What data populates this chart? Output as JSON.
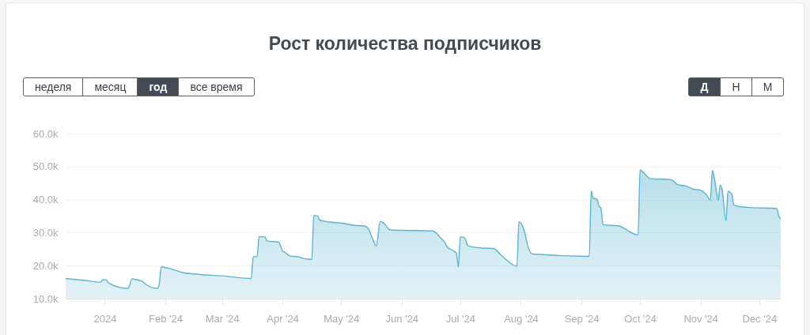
{
  "chart_data": {
    "type": "area",
    "title": "Рост количества подписчиков",
    "annotations": [
      "неделя",
      "месяц",
      "год",
      "все время",
      "Д",
      "Н",
      "М"
    ],
    "x": [
      "2023-12-12",
      "2023-12-22",
      "2023-12-30",
      "2023-12-31",
      "2024-01-01",
      "2024-01-02",
      "2024-01-03",
      "2024-01-13",
      "2024-01-15",
      "2024-01-16",
      "2024-01-20",
      "2024-01-22",
      "2024-01-28",
      "2024-01-29",
      "2024-01-30",
      "2024-02-01",
      "2024-02-02",
      "2024-02-10",
      "2024-02-17",
      "2024-03-01",
      "2024-03-16",
      "2024-03-17",
      "2024-03-19",
      "2024-03-20",
      "2024-03-23",
      "2024-03-24",
      "2024-03-30",
      "2024-04-01",
      "2024-04-02",
      "2024-04-05",
      "2024-04-09",
      "2024-04-12",
      "2024-04-16",
      "2024-04-17",
      "2024-04-19",
      "2024-04-20",
      "2024-04-25",
      "2024-05-01",
      "2024-05-08",
      "2024-05-13",
      "2024-05-15",
      "2024-05-17",
      "2024-05-19",
      "2024-05-21",
      "2024-05-23",
      "2024-05-26",
      "2024-06-17",
      "2024-06-19",
      "2024-06-21",
      "2024-06-23",
      "2024-06-24",
      "2024-06-29",
      "2024-06-30",
      "2024-07-01",
      "2024-07-03",
      "2024-07-05",
      "2024-07-07",
      "2024-07-12",
      "2024-07-18",
      "2024-07-22",
      "2024-07-30",
      "2024-07-31",
      "2024-08-02",
      "2024-08-03",
      "2024-08-05",
      "2024-08-07",
      "2024-09-05",
      "2024-09-06",
      "2024-09-07",
      "2024-09-09",
      "2024-09-10",
      "2024-09-11",
      "2024-09-12",
      "2024-09-20",
      "2024-09-30",
      "2024-10-01",
      "2024-10-02",
      "2024-10-04",
      "2024-10-06",
      "2024-10-17",
      "2024-10-20",
      "2024-10-25",
      "2024-10-28",
      "2024-11-01",
      "2024-11-04",
      "2024-11-06",
      "2024-11-07",
      "2024-11-08",
      "2024-11-10",
      "2024-11-11",
      "2024-11-12",
      "2024-11-14",
      "2024-11-15",
      "2024-11-17",
      "2024-11-18",
      "2024-11-20",
      "2024-11-26",
      "2024-12-10",
      "2024-12-11",
      "2024-12-12"
    ],
    "series": [
      {
        "color": "#5ab4cf",
        "values": [
          16100,
          15500,
          15000,
          15700,
          15700,
          15500,
          14700,
          13100,
          16000,
          15900,
          15300,
          14300,
          13100,
          14700,
          19700,
          19400,
          19300,
          17900,
          17400,
          16900,
          16100,
          22700,
          22700,
          28800,
          28700,
          27500,
          27100,
          24500,
          24100,
          22900,
          22700,
          22100,
          21900,
          35200,
          35000,
          33800,
          33200,
          32900,
          32200,
          32000,
          31100,
          28300,
          25900,
          33400,
          32800,
          30800,
          30500,
          29700,
          28300,
          27100,
          25900,
          23700,
          19600,
          28700,
          28500,
          26000,
          25700,
          25300,
          25200,
          23100,
          19800,
          33300,
          31800,
          29900,
          25100,
          23500,
          22800,
          42600,
          40400,
          40100,
          38000,
          37400,
          32400,
          32000,
          29300,
          49000,
          48600,
          47400,
          46400,
          46000,
          44600,
          44000,
          43200,
          42800,
          41400,
          39800,
          48800,
          46600,
          39800,
          44400,
          43000,
          33600,
          42500,
          41600,
          38400,
          38000,
          37600,
          37300,
          35000,
          34100
        ]
      }
    ],
    "xlim": [
      "2023-12-12",
      "2024-12-12"
    ],
    "xticks": [
      {
        "value": "2024-01-01",
        "label": "2024"
      },
      {
        "value": "2024-02-01",
        "label": "Feb '24"
      },
      {
        "value": "2024-03-01",
        "label": "Mar '24"
      },
      {
        "value": "2024-04-01",
        "label": "Apr '24"
      },
      {
        "value": "2024-05-01",
        "label": "May '24"
      },
      {
        "value": "2024-06-01",
        "label": "Jun '24"
      },
      {
        "value": "2024-07-01",
        "label": "Jul '24"
      },
      {
        "value": "2024-08-01",
        "label": "Aug '24"
      },
      {
        "value": "2024-09-01",
        "label": "Sep '24"
      },
      {
        "value": "2024-10-01",
        "label": "Oct '24"
      },
      {
        "value": "2024-11-01",
        "label": "Nov '24"
      },
      {
        "value": "2024-12-01",
        "label": "Dec '24"
      }
    ],
    "ylim": [
      10000,
      60000
    ],
    "yticks": [
      {
        "value": 10000,
        "label": "10.0k"
      },
      {
        "value": 20000,
        "label": "20.0k"
      },
      {
        "value": 30000,
        "label": "30.0k"
      },
      {
        "value": 40000,
        "label": "40.0k"
      },
      {
        "value": 50000,
        "label": "50.0k"
      },
      {
        "value": 60000,
        "label": "60.0k"
      }
    ],
    "grid": "y"
  }
}
